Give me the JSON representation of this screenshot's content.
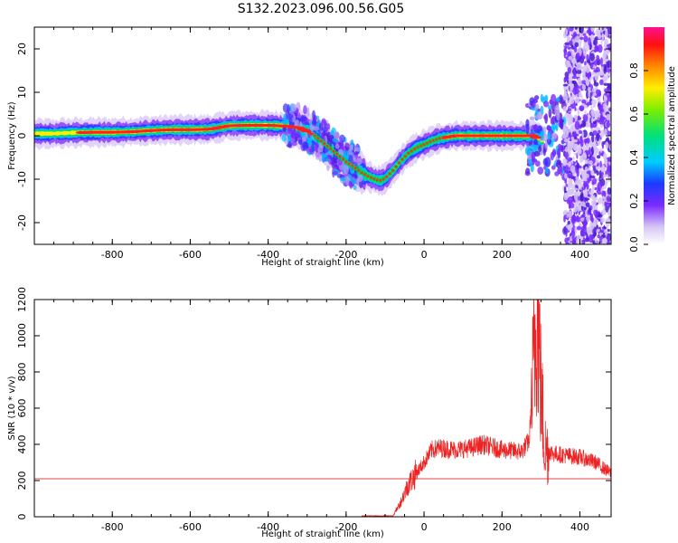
{
  "title": "S132.2023.096.00.56.G05",
  "colors": {
    "snr_line": "#ee2222",
    "reference_line": "#dd4444",
    "axes": "#000000"
  },
  "chart_data": [
    {
      "type": "heatmap",
      "xlabel": "Height of straight line (km)",
      "ylabel": "Frequency (Hz)",
      "xlim": [
        -1000,
        480
      ],
      "ylim": [
        -25,
        25
      ],
      "xticks": [
        -800,
        -600,
        -400,
        -200,
        0,
        200,
        400
      ],
      "yticks": [
        -20,
        -10,
        0,
        10,
        20
      ],
      "colorbar": {
        "label": "Normalized spectral amplitude",
        "ticks": [
          0.0,
          0.2,
          0.4,
          0.6,
          0.8
        ],
        "range": [
          0,
          1
        ],
        "colormap": "rainbow"
      },
      "ridge": {
        "x": [
          -1000,
          -950,
          -900,
          -850,
          -800,
          -750,
          -700,
          -650,
          -600,
          -550,
          -500,
          -450,
          -400,
          -350,
          -320,
          -300,
          -280,
          -260,
          -240,
          -220,
          -200,
          -180,
          -160,
          -140,
          -120,
          -110,
          -100,
          -80,
          -60,
          -40,
          -20,
          0,
          20,
          40,
          60,
          80,
          100,
          150,
          200,
          250,
          280,
          300
        ],
        "y": [
          0.5,
          0.5,
          0.7,
          0.8,
          0.8,
          0.9,
          1.2,
          1.4,
          1.4,
          1.5,
          2.3,
          2.4,
          2.4,
          2.2,
          1.8,
          1.0,
          0.0,
          -1.5,
          -3.0,
          -4.5,
          -6.0,
          -7.2,
          -8.5,
          -9.5,
          -10.2,
          -10.3,
          -9.8,
          -8.0,
          -5.8,
          -4.0,
          -2.8,
          -2.0,
          -1.2,
          -0.6,
          -0.3,
          0.0,
          0.0,
          0.0,
          0.0,
          0.0,
          0.0,
          -1.0
        ]
      },
      "noise_region_x": [
        360,
        480
      ]
    },
    {
      "type": "line",
      "xlabel": "Height of straight line (km)",
      "ylabel": "SNR (10 * v/v)",
      "xlim": [
        -1000,
        480
      ],
      "ylim": [
        0,
        1200
      ],
      "xticks": [
        -800,
        -600,
        -400,
        -200,
        0,
        200,
        400
      ],
      "yticks": [
        0,
        200,
        400,
        600,
        800,
        1000,
        1200
      ],
      "reference_level": 210,
      "series": [
        {
          "x": [
            -160,
            -120,
            -80,
            -60,
            -40,
            -20,
            0,
            20,
            40,
            80,
            120,
            150,
            200,
            250,
            270,
            280,
            290,
            300,
            310,
            330,
            360,
            400,
            440,
            480
          ],
          "y": [
            5,
            5,
            5,
            80,
            180,
            240,
            300,
            370,
            380,
            370,
            380,
            400,
            370,
            360,
            420,
            800,
            1200,
            700,
            380,
            350,
            340,
            330,
            300,
            240
          ]
        }
      ]
    }
  ]
}
